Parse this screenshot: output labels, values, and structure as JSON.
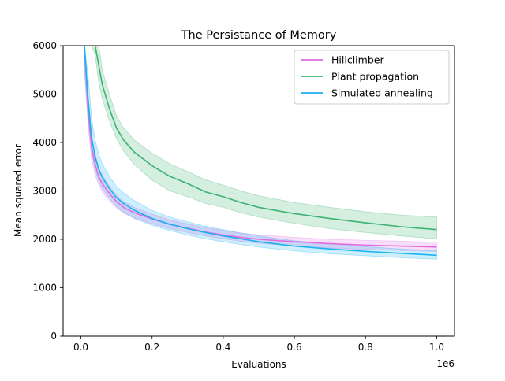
{
  "chart_data": {
    "type": "line",
    "title": "The Persistance of Memory",
    "xlabel": "Evaluations",
    "ylabel": "Mean squared error",
    "x_offset_label": "1e6",
    "xlim": [
      -0.05,
      1.05
    ],
    "ylim": [
      0,
      6000
    ],
    "xticks": [
      0.0,
      0.2,
      0.4,
      0.6,
      0.8,
      1.0
    ],
    "xtick_labels": [
      "0.0",
      "0.2",
      "0.4",
      "0.6",
      "0.8",
      "1.0"
    ],
    "yticks": [
      0,
      1000,
      2000,
      3000,
      4000,
      5000,
      6000
    ],
    "ytick_labels": [
      "0",
      "1000",
      "2000",
      "3000",
      "4000",
      "5000",
      "6000"
    ],
    "grid": false,
    "legend_position": "top-right",
    "x": [
      0.01,
      0.02,
      0.03,
      0.04,
      0.05,
      0.06,
      0.08,
      0.1,
      0.12,
      0.15,
      0.2,
      0.25,
      0.3,
      0.35,
      0.4,
      0.45,
      0.5,
      0.6,
      0.7,
      0.8,
      0.9,
      1.0
    ],
    "series": [
      {
        "name": "Hillclimber",
        "color": "#e36ae3",
        "values": [
          6000,
          4700,
          3900,
          3550,
          3300,
          3150,
          2950,
          2780,
          2660,
          2550,
          2420,
          2310,
          2230,
          2150,
          2090,
          2040,
          2000,
          1950,
          1910,
          1880,
          1860,
          1840
        ],
        "lower": [
          5500,
          4350,
          3650,
          3330,
          3120,
          2980,
          2800,
          2650,
          2540,
          2440,
          2320,
          2220,
          2140,
          2070,
          2010,
          1960,
          1920,
          1860,
          1820,
          1790,
          1770,
          1750
        ],
        "upper": [
          6000,
          5050,
          4150,
          3770,
          3480,
          3320,
          3100,
          2910,
          2780,
          2660,
          2520,
          2400,
          2320,
          2240,
          2180,
          2130,
          2090,
          2040,
          2000,
          1980,
          1960,
          1940
        ]
      },
      {
        "name": "Plant propagation",
        "color": "#3cb371",
        "values": [
          6000,
          6000,
          6000,
          6000,
          5600,
          5200,
          4700,
          4300,
          4050,
          3800,
          3520,
          3300,
          3150,
          2980,
          2880,
          2760,
          2660,
          2530,
          2430,
          2340,
          2260,
          2200
        ],
        "lower": [
          6000,
          6000,
          6000,
          5800,
          5250,
          4900,
          4450,
          4080,
          3820,
          3550,
          3220,
          3000,
          2880,
          2740,
          2660,
          2550,
          2460,
          2330,
          2220,
          2140,
          2070,
          2010
        ],
        "upper": [
          6000,
          6000,
          6000,
          6000,
          6000,
          5500,
          5000,
          4550,
          4300,
          4050,
          3780,
          3560,
          3400,
          3230,
          3120,
          3000,
          2900,
          2760,
          2660,
          2570,
          2500,
          2460
        ]
      },
      {
        "name": "Simulated annealing",
        "color": "#1ab2f0",
        "values": [
          6000,
          4900,
          4100,
          3700,
          3450,
          3280,
          3050,
          2860,
          2740,
          2600,
          2430,
          2310,
          2220,
          2140,
          2070,
          2010,
          1950,
          1860,
          1800,
          1750,
          1710,
          1670
        ],
        "lower": [
          5500,
          4500,
          3800,
          3430,
          3200,
          3050,
          2850,
          2680,
          2560,
          2430,
          2290,
          2180,
          2090,
          2010,
          1950,
          1890,
          1840,
          1760,
          1700,
          1660,
          1620,
          1590
        ],
        "upper": [
          6000,
          5400,
          4500,
          4050,
          3760,
          3560,
          3300,
          3090,
          2960,
          2800,
          2600,
          2460,
          2360,
          2270,
          2200,
          2130,
          2070,
          1970,
          1910,
          1850,
          1800,
          1760
        ]
      }
    ]
  }
}
